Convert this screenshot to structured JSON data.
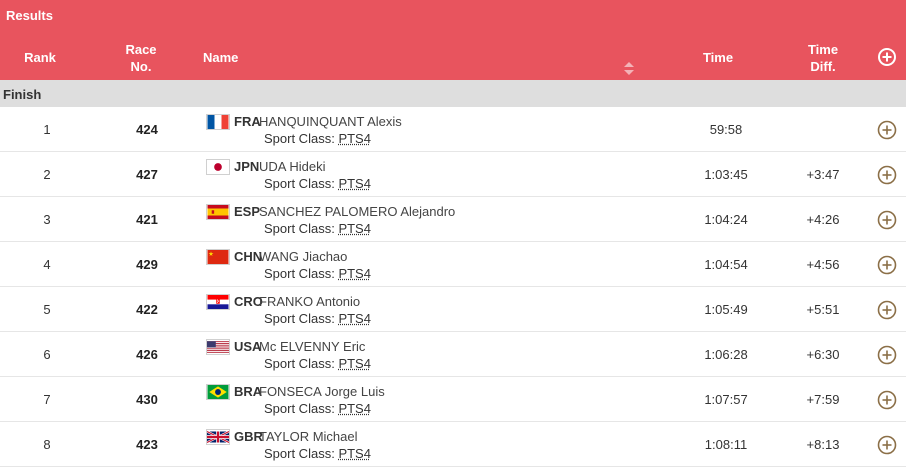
{
  "header": {
    "title": "Results",
    "columns": {
      "rank": "Rank",
      "race_no_line1": "Race",
      "race_no_line2": "No.",
      "name": "Name",
      "time": "Time",
      "diff_line1": "Time",
      "diff_line2": "Diff."
    },
    "colors": {
      "header_bg": "#e8545e",
      "section_bg": "#dedede",
      "expand_icon": "#8b6f47"
    }
  },
  "section": {
    "label": "Finish"
  },
  "sport_class_label": "Sport Class:",
  "rows": [
    {
      "rank": "1",
      "race_no": "424",
      "noc": "FRA",
      "flag": "fra-flag",
      "name": "HANQUINQUANT Alexis",
      "sport_class": "PTS4",
      "time": "59:58",
      "diff": ""
    },
    {
      "rank": "2",
      "race_no": "427",
      "noc": "JPN",
      "flag": "jpn-flag",
      "name": "UDA Hideki",
      "sport_class": "PTS4",
      "time": "1:03:45",
      "diff": "+3:47"
    },
    {
      "rank": "3",
      "race_no": "421",
      "noc": "ESP",
      "flag": "esp-flag",
      "name": "SANCHEZ PALOMERO Alejandro",
      "sport_class": "PTS4",
      "time": "1:04:24",
      "diff": "+4:26"
    },
    {
      "rank": "4",
      "race_no": "429",
      "noc": "CHN",
      "flag": "chn-flag",
      "name": "WANG Jiachao",
      "sport_class": "PTS4",
      "time": "1:04:54",
      "diff": "+4:56"
    },
    {
      "rank": "5",
      "race_no": "422",
      "noc": "CRO",
      "flag": "cro-flag",
      "name": "FRANKO Antonio",
      "sport_class": "PTS4",
      "time": "1:05:49",
      "diff": "+5:51"
    },
    {
      "rank": "6",
      "race_no": "426",
      "noc": "USA",
      "flag": "usa-flag",
      "name": "Mc ELVENNY Eric",
      "sport_class": "PTS4",
      "time": "1:06:28",
      "diff": "+6:30"
    },
    {
      "rank": "7",
      "race_no": "430",
      "noc": "BRA",
      "flag": "bra-flag",
      "name": "FONSECA Jorge Luis",
      "sport_class": "PTS4",
      "time": "1:07:57",
      "diff": "+7:59"
    },
    {
      "rank": "8",
      "race_no": "423",
      "noc": "GBR",
      "flag": "gbr-flag",
      "name": "TAYLOR Michael",
      "sport_class": "PTS4",
      "time": "1:08:11",
      "diff": "+8:13"
    }
  ]
}
